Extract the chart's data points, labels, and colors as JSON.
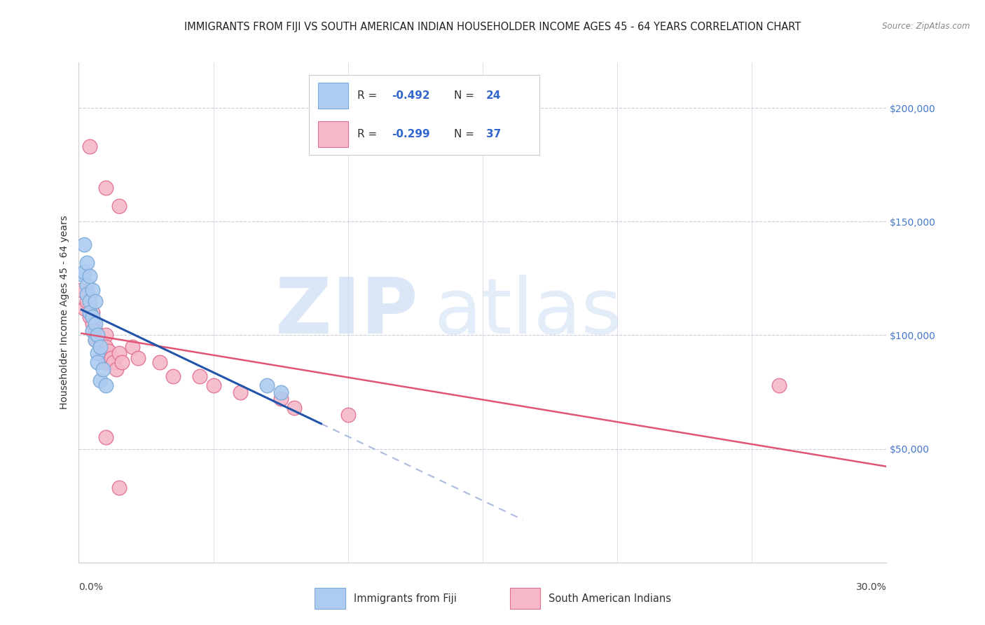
{
  "title": "IMMIGRANTS FROM FIJI VS SOUTH AMERICAN INDIAN HOUSEHOLDER INCOME AGES 45 - 64 YEARS CORRELATION CHART",
  "source": "Source: ZipAtlas.com",
  "ylabel": "Householder Income Ages 45 - 64 years",
  "xlim": [
    0.0,
    0.3
  ],
  "ylim": [
    0,
    220000
  ],
  "yticks": [
    50000,
    100000,
    150000,
    200000
  ],
  "ytick_labels": [
    "$50,000",
    "$100,000",
    "$150,000",
    "$200,000"
  ],
  "fiji_color": "#aecbf0",
  "fiji_edge_color": "#7aaad8",
  "sa_color": "#f5b8c8",
  "sa_edge_color": "#e07090",
  "fiji_line_color": "#2255aa",
  "sa_line_color": "#e05575",
  "fiji_line_dash_color": "#aabbdd",
  "watermark_zip_color": "#ccddf5",
  "watermark_atlas_color": "#ccddf5",
  "background_color": "#ffffff",
  "grid_color": "#ccccdd",
  "title_fontsize": 10.5,
  "ylabel_fontsize": 10,
  "tick_fontsize": 10,
  "fiji_data": [
    [
      0.001,
      127000
    ],
    [
      0.002,
      140000
    ],
    [
      0.002,
      128000
    ],
    [
      0.003,
      132000
    ],
    [
      0.003,
      122000
    ],
    [
      0.003,
      118000
    ],
    [
      0.004,
      126000
    ],
    [
      0.004,
      115000
    ],
    [
      0.004,
      110000
    ],
    [
      0.005,
      108000
    ],
    [
      0.005,
      120000
    ],
    [
      0.005,
      102000
    ],
    [
      0.006,
      115000
    ],
    [
      0.006,
      105000
    ],
    [
      0.006,
      98000
    ],
    [
      0.007,
      100000
    ],
    [
      0.007,
      92000
    ],
    [
      0.007,
      88000
    ],
    [
      0.008,
      95000
    ],
    [
      0.008,
      80000
    ],
    [
      0.009,
      85000
    ],
    [
      0.01,
      78000
    ],
    [
      0.07,
      78000
    ],
    [
      0.075,
      75000
    ]
  ],
  "sa_data": [
    [
      0.004,
      183000
    ],
    [
      0.01,
      165000
    ],
    [
      0.015,
      157000
    ],
    [
      0.001,
      120000
    ],
    [
      0.002,
      112000
    ],
    [
      0.003,
      115000
    ],
    [
      0.004,
      108000
    ],
    [
      0.005,
      110000
    ],
    [
      0.005,
      105000
    ],
    [
      0.006,
      102000
    ],
    [
      0.006,
      98000
    ],
    [
      0.007,
      100000
    ],
    [
      0.008,
      98000
    ],
    [
      0.009,
      96000
    ],
    [
      0.009,
      92000
    ],
    [
      0.01,
      100000
    ],
    [
      0.01,
      95000
    ],
    [
      0.01,
      88000
    ],
    [
      0.011,
      93000
    ],
    [
      0.012,
      90000
    ],
    [
      0.013,
      88000
    ],
    [
      0.014,
      85000
    ],
    [
      0.015,
      92000
    ],
    [
      0.016,
      88000
    ],
    [
      0.02,
      95000
    ],
    [
      0.022,
      90000
    ],
    [
      0.03,
      88000
    ],
    [
      0.035,
      82000
    ],
    [
      0.045,
      82000
    ],
    [
      0.05,
      78000
    ],
    [
      0.06,
      75000
    ],
    [
      0.075,
      72000
    ],
    [
      0.08,
      68000
    ],
    [
      0.01,
      55000
    ],
    [
      0.015,
      33000
    ],
    [
      0.26,
      78000
    ],
    [
      0.1,
      65000
    ]
  ],
  "fiji_line_x_start": 0.001,
  "fiji_line_x_solid_end": 0.09,
  "fiji_line_x_dash_end": 0.165,
  "sa_line_x_start": 0.001,
  "sa_line_x_end": 0.3
}
